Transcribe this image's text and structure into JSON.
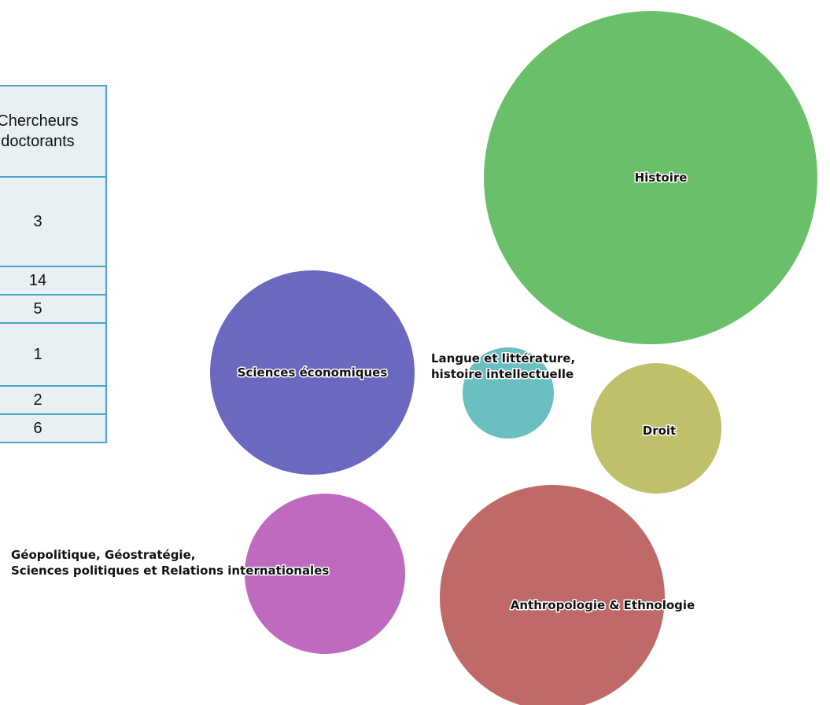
{
  "table": {
    "header": [
      "Chercheurs",
      "doctorants"
    ],
    "values": [
      "3",
      "14",
      "5",
      "1",
      "2",
      "6"
    ]
  },
  "chart_data": {
    "type": "bubble",
    "title": "",
    "bubbles": [
      {
        "label_lines": [
          "Histoire"
        ],
        "value": 14,
        "color": "#6abf6a"
      },
      {
        "label_lines": [
          "Sciences économiques"
        ],
        "value": 6,
        "color": "#6a68bf"
      },
      {
        "label_lines": [
          "Langue et littérature,",
          "histoire intellectuelle"
        ],
        "value": 1,
        "color": "#6abfc0"
      },
      {
        "label_lines": [
          "Droit"
        ],
        "value": 2,
        "color": "#c0bf6a"
      },
      {
        "label_lines": [
          "Géopolitique, Géostratégie,",
          "Sciences politiques et Relations internationales"
        ],
        "value": 3,
        "color": "#bf6abf"
      },
      {
        "label_lines": [
          "Anthropologie & Ethnologie"
        ],
        "value": 5,
        "color": "#bf6a68"
      }
    ]
  }
}
